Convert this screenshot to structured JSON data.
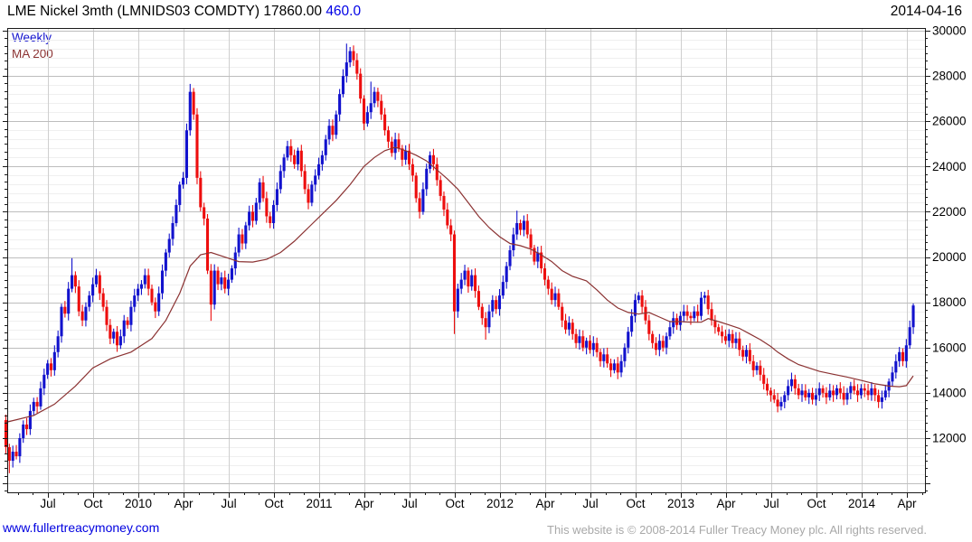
{
  "header": {
    "title_main": "LME Nickel 3mth (LMNIDS03 COMDTY) 17860.00 ",
    "title_change": "460.0",
    "date": "2014-04-16"
  },
  "legend": {
    "series_label": "Weekly",
    "ma_label": "MA 200"
  },
  "footer": {
    "link": "www.fullertreacymoney.com",
    "copyright": "This website is © 2008-2014 Fuller Treacy Money plc. All rights reserved."
  },
  "colors": {
    "up": "#1212cd",
    "down": "#ed0e0e",
    "ma": "#8b3232",
    "grid_minor": "#efefef",
    "grid_major": "#bdbdbd",
    "grid_vert": "#cfcfcf",
    "axis": "#1a1a1a",
    "tick_text": "#000000",
    "change": "#0000e6",
    "link": "#0000e0",
    "copyright": "#a8a8a8"
  },
  "chart_data": {
    "type": "candlestick",
    "title": "LME Nickel 3mth (LMNIDS03 COMDTY)",
    "interval": "Weekly",
    "last_price": 17860.0,
    "change": 460.0,
    "overlay": "MA 200",
    "ylim": [
      9600,
      30120
    ],
    "y_tick_labels": [
      30000,
      28000,
      26000,
      24000,
      22000,
      20000,
      18000,
      16000,
      14000,
      12000
    ],
    "y_major_step": 2000,
    "y_minor_grid_step": 400,
    "x_tick_labels": [
      "Jul",
      "Oct",
      "2010",
      "Apr",
      "Jul",
      "Oct",
      "2011",
      "Apr",
      "Jul",
      "Oct",
      "2012",
      "Apr",
      "Jul",
      "Oct",
      "2013",
      "Apr",
      "Jul",
      "Oct",
      "2014",
      "Apr"
    ],
    "first_open": 12800,
    "weekly_closes": [
      11600,
      11000,
      11400,
      11200,
      12000,
      12600,
      12400,
      13200,
      13600,
      13400,
      14200,
      14800,
      15300,
      15000,
      15800,
      16500,
      17800,
      17500,
      18600,
      19200,
      18700,
      17600,
      17200,
      17800,
      18300,
      18800,
      19200,
      18400,
      17800,
      17000,
      16400,
      16700,
      16100,
      16500,
      17200,
      17000,
      17800,
      18300,
      18600,
      18800,
      19200,
      18600,
      18000,
      17600,
      18400,
      19400,
      20200,
      20800,
      21500,
      22300,
      23200,
      23500,
      25600,
      27300,
      26300,
      23500,
      22200,
      21700,
      19400,
      17900,
      19400,
      18800,
      19100,
      18600,
      19000,
      19500,
      20200,
      21000,
      20600,
      21400,
      22000,
      21600,
      22400,
      23300,
      22600,
      21800,
      21500,
      22300,
      23000,
      23800,
      24400,
      24900,
      24500,
      24100,
      24700,
      23800,
      23000,
      22400,
      23200,
      23600,
      24100,
      24500,
      25200,
      25800,
      25400,
      26300,
      27200,
      28000,
      28600,
      29100,
      28700,
      28100,
      27000,
      25900,
      26400,
      26800,
      27300,
      26900,
      26300,
      25600,
      25100,
      24600,
      25200,
      24800,
      24300,
      24700,
      24100,
      23600,
      22600,
      22000,
      23000,
      23900,
      24500,
      24100,
      23400,
      22700,
      22100,
      21400,
      21000,
      17600,
      18600,
      19000,
      19400,
      18700,
      19200,
      18500,
      17800,
      17300,
      16900,
      17600,
      18100,
      17700,
      18300,
      18900,
      19600,
      20300,
      21000,
      21500,
      21200,
      21600,
      21000,
      20400,
      19800,
      20200,
      19500,
      19000,
      18600,
      18100,
      18400,
      17800,
      17200,
      16800,
      17100,
      16600,
      16200,
      16500,
      16000,
      16300,
      15900,
      16200,
      15800,
      15400,
      15700,
      15300,
      15000,
      15300,
      14900,
      15400,
      16000,
      16700,
      17400,
      18100,
      18300,
      17800,
      17200,
      16600,
      16200,
      15900,
      16300,
      16000,
      16500,
      16900,
      17300,
      17000,
      17400,
      17600,
      17400,
      17300,
      17600,
      17400,
      18200,
      18300,
      17700,
      17200,
      16900,
      16700,
      16500,
      16300,
      16600,
      16200,
      16400,
      15900,
      15600,
      15900,
      15400,
      15000,
      15200,
      14800,
      14400,
      14100,
      13900,
      13700,
      13400,
      13600,
      13900,
      14300,
      14600,
      14200,
      13900,
      14100,
      13800,
      14000,
      13700,
      13900,
      14200,
      14000,
      13800,
      14100,
      13900,
      14200,
      14000,
      13700,
      14000,
      14300,
      14100,
      13900,
      14200,
      14100,
      13900,
      14200,
      13900,
      13600,
      13800,
      14100,
      14500,
      14900,
      15400,
      15800,
      15400,
      16100,
      16900,
      17860
    ],
    "wick_overrides": {
      "1": {
        "low": 10450
      },
      "19": {
        "high": 19950
      },
      "53": {
        "high": 27650
      },
      "59": {
        "low": 17180
      },
      "98": {
        "high": 29430
      },
      "99": {
        "high": 29280
      },
      "105": {
        "high": 27750
      },
      "129": {
        "low": 16600
      },
      "138": {
        "low": 16350
      },
      "147": {
        "high": 22050
      },
      "201": {
        "high": 18470
      },
      "222": {
        "low": 13140
      },
      "251": {
        "low": 13330
      },
      "261": {
        "high": 17950
      }
    },
    "ma_points": [
      [
        0,
        12700
      ],
      [
        8,
        13000
      ],
      [
        14,
        13500
      ],
      [
        20,
        14300
      ],
      [
        25,
        15100
      ],
      [
        30,
        15500
      ],
      [
        36,
        15800
      ],
      [
        42,
        16400
      ],
      [
        46,
        17200
      ],
      [
        50,
        18400
      ],
      [
        53,
        19600
      ],
      [
        56,
        20100
      ],
      [
        59,
        20200
      ],
      [
        63,
        20000
      ],
      [
        67,
        19800
      ],
      [
        71,
        19780
      ],
      [
        75,
        19900
      ],
      [
        79,
        20200
      ],
      [
        83,
        20700
      ],
      [
        87,
        21300
      ],
      [
        91,
        21900
      ],
      [
        95,
        22500
      ],
      [
        99,
        23200
      ],
      [
        103,
        24000
      ],
      [
        106,
        24400
      ],
      [
        109,
        24700
      ],
      [
        112,
        24850
      ],
      [
        115,
        24700
      ],
      [
        118,
        24500
      ],
      [
        121,
        24250
      ],
      [
        124,
        23850
      ],
      [
        127,
        23450
      ],
      [
        130,
        23000
      ],
      [
        133,
        22400
      ],
      [
        136,
        21800
      ],
      [
        139,
        21300
      ],
      [
        142,
        20900
      ],
      [
        145,
        20600
      ],
      [
        148,
        20500
      ],
      [
        151,
        20350
      ],
      [
        154,
        20100
      ],
      [
        157,
        19800
      ],
      [
        160,
        19400
      ],
      [
        163,
        19150
      ],
      [
        167,
        18950
      ],
      [
        170,
        18550
      ],
      [
        173,
        18100
      ],
      [
        176,
        17750
      ],
      [
        179,
        17550
      ],
      [
        182,
        17480
      ],
      [
        185,
        17550
      ],
      [
        188,
        17350
      ],
      [
        191,
        17150
      ],
      [
        194,
        17150
      ],
      [
        197,
        17120
      ],
      [
        200,
        17120
      ],
      [
        202,
        17280
      ],
      [
        205,
        17150
      ],
      [
        208,
        17000
      ],
      [
        211,
        16850
      ],
      [
        214,
        16600
      ],
      [
        217,
        16350
      ],
      [
        220,
        16050
      ],
      [
        222,
        15800
      ],
      [
        225,
        15500
      ],
      [
        228,
        15250
      ],
      [
        231,
        15100
      ],
      [
        234,
        14950
      ],
      [
        238,
        14820
      ],
      [
        242,
        14700
      ],
      [
        246,
        14550
      ],
      [
        250,
        14400
      ],
      [
        254,
        14300
      ],
      [
        257,
        14270
      ],
      [
        259,
        14320
      ],
      [
        261,
        14750
      ]
    ]
  }
}
